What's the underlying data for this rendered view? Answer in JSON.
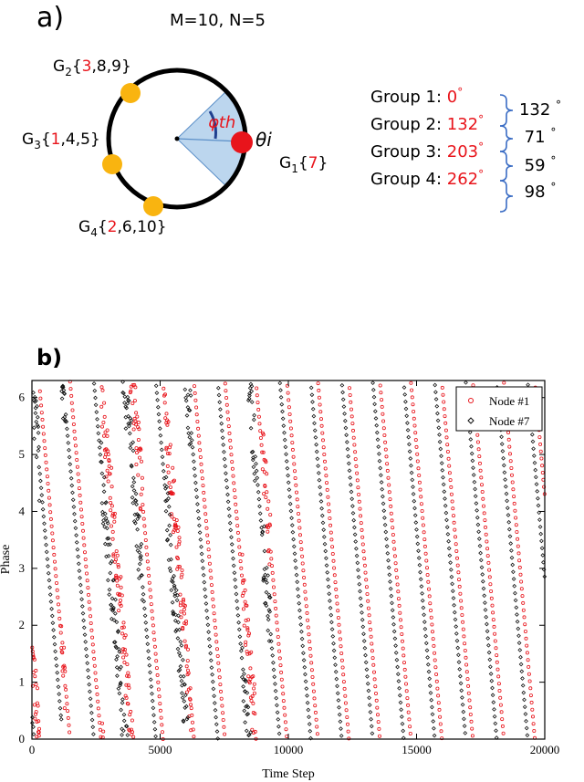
{
  "panel_a": {
    "label": "a)",
    "params": "M=10, N=5",
    "phi_label": "φth",
    "theta_label": "θi",
    "groups_on_circle": [
      {
        "name": "G",
        "sub": "2",
        "first": "3",
        "rest": ",8,9"
      },
      {
        "name": "G",
        "sub": "3",
        "first": "1",
        "rest": ",4,5"
      },
      {
        "name": "G",
        "sub": "4",
        "first": "2",
        "rest": ",6,10"
      },
      {
        "name": "G",
        "sub": "1",
        "first": "7",
        "rest": ""
      }
    ],
    "table": [
      {
        "group": "Group 1:",
        "angle": "0"
      },
      {
        "group": "Group 2:",
        "angle": "132"
      },
      {
        "group": "Group 3:",
        "angle": "203"
      },
      {
        "group": "Group 4:",
        "angle": "262"
      }
    ],
    "diffs": [
      "132",
      "71",
      "59",
      "98"
    ],
    "degree_symbol": "°",
    "colors": {
      "highlight": "#e8141b",
      "yellow": "#f9b410",
      "wedge": "#bcd6ee",
      "brace": "#3a6cc4"
    }
  },
  "panel_b": {
    "label": "b)"
  },
  "chart_data": {
    "type": "scatter",
    "xlabel": "Time Step",
    "ylabel": "Phase",
    "xlim": [
      0,
      20000
    ],
    "ylim": [
      0,
      6.3
    ],
    "x_ticks": [
      "0",
      "5000",
      "10000",
      "15000",
      "20000"
    ],
    "y_ticks": [
      "0",
      "1",
      "2",
      "3",
      "4",
      "5",
      "6"
    ],
    "legend_position": "top-right",
    "series": [
      {
        "name": "Node #1",
        "color": "#e8141b",
        "marker": "open-circle",
        "period_steps": 1220,
        "slope_rad_per_step": -0.0052,
        "offset": 1.45
      },
      {
        "name": "Node #7",
        "color": "#111111",
        "marker": "open-diamond",
        "period_steps": 1220,
        "slope_rad_per_step": -0.0052,
        "offset": 0.0
      }
    ],
    "noisy_intervals": [
      [
        0,
        300
      ],
      [
        1150,
        1300
      ],
      [
        2700,
        4300
      ],
      [
        5200,
        6200
      ],
      [
        8200,
        8700
      ],
      [
        9000,
        9300
      ]
    ]
  }
}
